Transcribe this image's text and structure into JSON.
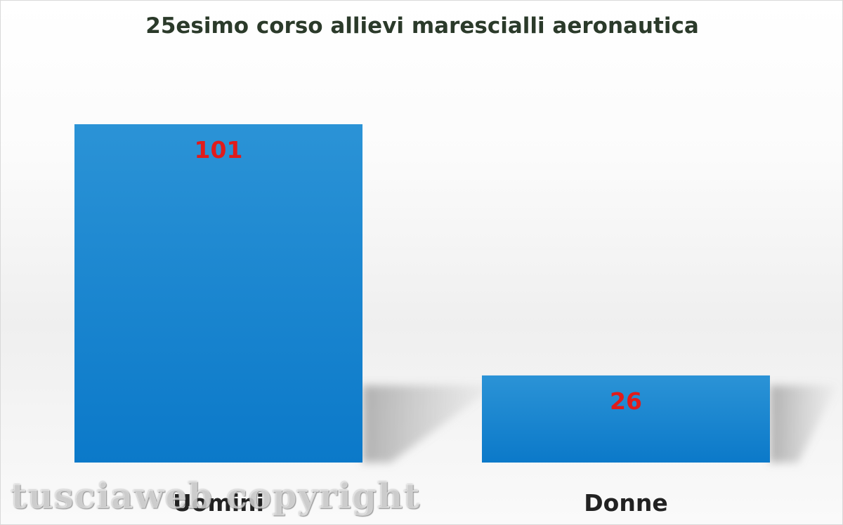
{
  "chart_data": {
    "type": "bar",
    "title": "25esimo corso allievi marescialli aeronautica",
    "categories": [
      "Uomini",
      "Donne"
    ],
    "values": [
      101,
      26
    ],
    "data_labels": [
      "101",
      "26"
    ],
    "ylim": [
      0,
      101
    ],
    "grid": false,
    "legend": "none",
    "bar_color": "#1f84cc",
    "data_label_color": "#e11b1b"
  },
  "watermark": "tusciaweb copyright"
}
